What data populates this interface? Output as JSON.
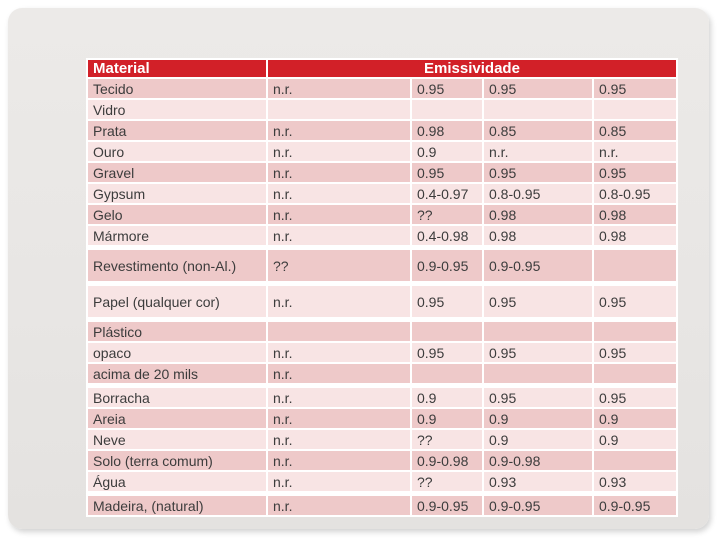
{
  "slide": {
    "background_color": "#e8e6e4",
    "page_background": "#ffffff"
  },
  "table": {
    "header": {
      "material": "Material",
      "emissividade": "Emissividade"
    },
    "colors": {
      "header_bg": "#d22028",
      "header_text": "#ffffff",
      "row_dark": "#eec9c9",
      "row_light": "#f8e4e4",
      "cell_text": "#3c3c3c",
      "border": "#ffffff"
    },
    "rows": [
      {
        "material": "Tecido",
        "values": [
          "n.r.",
          "0.95",
          "0.95",
          "0.95"
        ],
        "shade": "dark"
      },
      {
        "material": "Vidro",
        "values": [
          "",
          "",
          "",
          ""
        ],
        "shade": "light"
      },
      {
        "material": "Prata",
        "values": [
          "n.r.",
          "0.98",
          "0.85",
          "0.85"
        ],
        "shade": "dark"
      },
      {
        "material": "Ouro",
        "values": [
          "n.r.",
          "0.9",
          "n.r.",
          "n.r."
        ],
        "shade": "light"
      },
      {
        "material": "Gravel",
        "values": [
          "n.r.",
          "0.95",
          "0.95",
          "0.95"
        ],
        "shade": "dark"
      },
      {
        "material": "Gypsum",
        "values": [
          "n.r.",
          "0.4-0.97",
          "0.8-0.95",
          "0.8-0.95"
        ],
        "shade": "light"
      },
      {
        "material": "Gelo",
        "values": [
          "n.r.",
          "??",
          "0.98",
          "0.98"
        ],
        "shade": "dark"
      },
      {
        "material": "Mármore",
        "values": [
          "n.r.",
          "0.4-0.98",
          "0.98",
          "0.98"
        ],
        "shade": "light"
      },
      {
        "material": "Revestimento (non-Al.)",
        "values": [
          "??",
          "0.9-0.95",
          "0.9-0.95",
          ""
        ],
        "shade": "dark",
        "tall": true,
        "gap_before": true
      },
      {
        "material": "Papel (qualquer cor)",
        "values": [
          "n.r.",
          "0.95",
          "0.95",
          "0.95"
        ],
        "shade": "light",
        "tall": true,
        "gap_before": true
      },
      {
        "material": "Plástico",
        "values": [
          "",
          "",
          "",
          ""
        ],
        "shade": "dark",
        "gap_before": true
      },
      {
        "material": "opaco",
        "values": [
          "n.r.",
          "0.95",
          "0.95",
          "0.95"
        ],
        "shade": "light"
      },
      {
        "material": "acima de 20 mils",
        "values": [
          "n.r.",
          "",
          "",
          ""
        ],
        "shade": "dark"
      },
      {
        "material": "Borracha",
        "values": [
          "n.r.",
          "0.9",
          "0.95",
          "0.95"
        ],
        "shade": "light",
        "gap_before": true
      },
      {
        "material": "Areia",
        "values": [
          "n.r.",
          "0.9",
          "0.9",
          "0.9"
        ],
        "shade": "dark"
      },
      {
        "material": "Neve",
        "values": [
          "n.r.",
          "??",
          "0.9",
          "0.9"
        ],
        "shade": "light"
      },
      {
        "material": "Solo (terra comum)",
        "values": [
          "n.r.",
          "0.9-0.98",
          "0.9-0.98",
          ""
        ],
        "shade": "dark"
      },
      {
        "material": "Água",
        "values": [
          "n.r.",
          "??",
          "0.93",
          "0.93"
        ],
        "shade": "light"
      },
      {
        "material": "Madeira, (natural)",
        "values": [
          "n.r.",
          "0.9-0.95",
          "0.9-0.95",
          "0.9-0.95"
        ],
        "shade": "dark",
        "gap_before": true
      }
    ]
  }
}
